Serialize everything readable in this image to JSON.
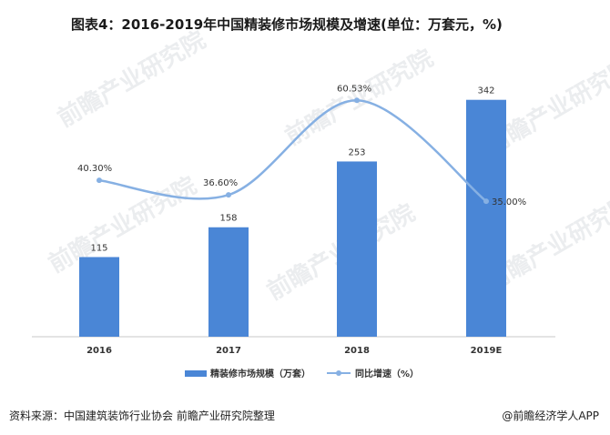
{
  "title": "图表4：2016-2019年中国精装修市场规模及增速(单位：万套元，%)",
  "source": "资料来源：中国建筑装饰行业协会 前瞻产业研究院整理",
  "credit": "@前瞻经济学人APP",
  "watermark": "前瞻产业研究院",
  "colors": {
    "bar": "#4a86d6",
    "line": "#86b0e3",
    "axis": "#c8c8c8"
  },
  "chart_data": {
    "type": "bar",
    "categories": [
      "2016",
      "2017",
      "2018",
      "2019E"
    ],
    "series": [
      {
        "name": "精装修市场规模（万套）",
        "type": "bar",
        "values": [
          115,
          158,
          253,
          342
        ],
        "labels": [
          "115",
          "158",
          "253",
          "342"
        ]
      },
      {
        "name": "同比增速（%）",
        "type": "line",
        "values": [
          40.3,
          36.6,
          60.53,
          35.0
        ],
        "labels": [
          "40.30%",
          "36.60%",
          "60.53%",
          "35.00%"
        ]
      }
    ],
    "ylim": [
      0,
      360
    ],
    "y2lim": [
      0,
      70
    ],
    "legend": "bottom"
  }
}
